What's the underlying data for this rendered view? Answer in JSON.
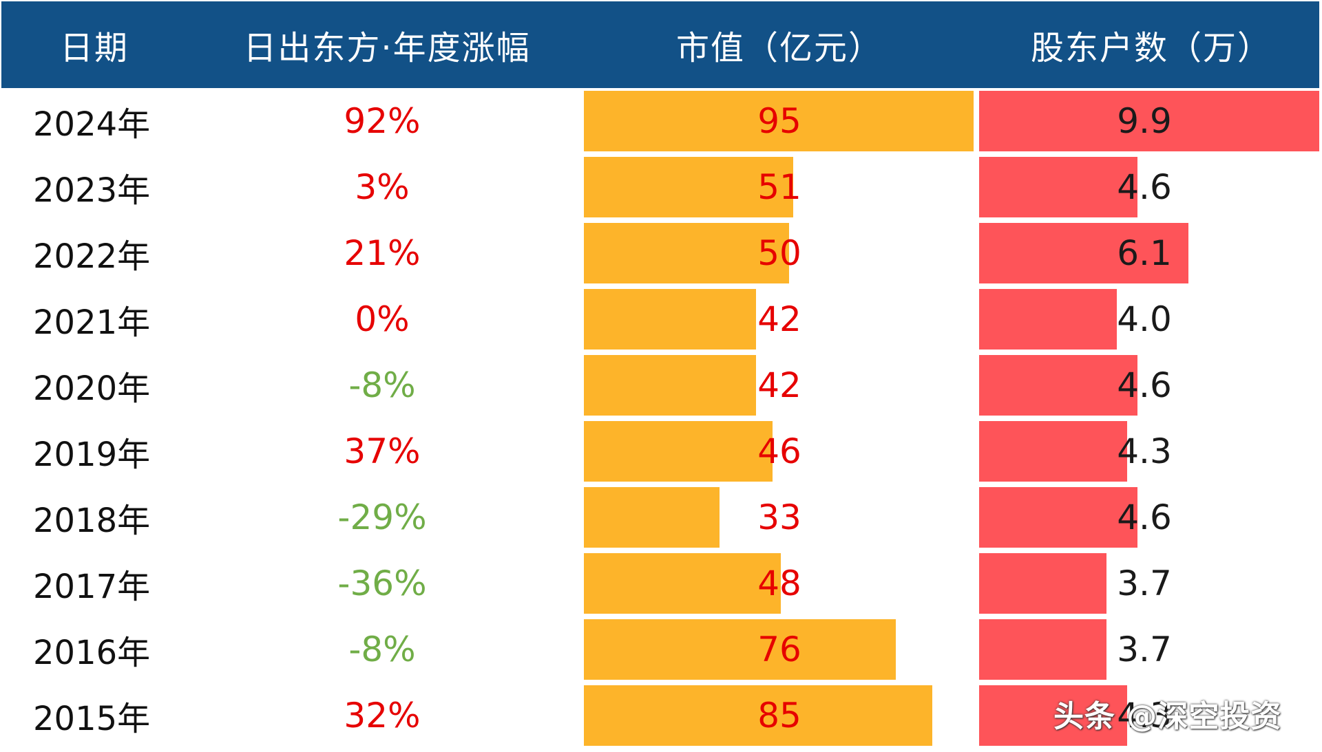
{
  "header": {
    "date": "日期",
    "change": "日出东方·年度涨幅",
    "market_value": "市值（亿元）",
    "shareholders": "股东户数（万）"
  },
  "colors": {
    "header_bg": "#125187",
    "market_value_bar": "#FDB42A",
    "shareholders_bar": "#FE5459",
    "positive": "#E60000",
    "negative": "#70AD47"
  },
  "chart_data": {
    "type": "table",
    "columns": [
      "日期",
      "日出东方·年度涨幅",
      "市值（亿元）",
      "股东户数（万）"
    ],
    "rows": [
      {
        "date": "2024年",
        "change": "92%",
        "change_sign": "up",
        "market_value": 95,
        "market_value_label": "95",
        "shareholders": 9.9,
        "shareholders_label": "9.9"
      },
      {
        "date": "2023年",
        "change": "3%",
        "change_sign": "up",
        "market_value": 51,
        "market_value_label": "51",
        "shareholders": 4.6,
        "shareholders_label": "4.6"
      },
      {
        "date": "2022年",
        "change": "21%",
        "change_sign": "up",
        "market_value": 50,
        "market_value_label": "50",
        "shareholders": 6.1,
        "shareholders_label": "6.1"
      },
      {
        "date": "2021年",
        "change": "0%",
        "change_sign": "up",
        "market_value": 42,
        "market_value_label": "42",
        "shareholders": 4.0,
        "shareholders_label": "4.0"
      },
      {
        "date": "2020年",
        "change": "-8%",
        "change_sign": "down",
        "market_value": 42,
        "market_value_label": "42",
        "shareholders": 4.6,
        "shareholders_label": "4.6"
      },
      {
        "date": "2019年",
        "change": "37%",
        "change_sign": "up",
        "market_value": 46,
        "market_value_label": "46",
        "shareholders": 4.3,
        "shareholders_label": "4.3"
      },
      {
        "date": "2018年",
        "change": "-29%",
        "change_sign": "down",
        "market_value": 33,
        "market_value_label": "33",
        "shareholders": 4.6,
        "shareholders_label": "4.6"
      },
      {
        "date": "2017年",
        "change": "-36%",
        "change_sign": "down",
        "market_value": 48,
        "market_value_label": "48",
        "shareholders": 3.7,
        "shareholders_label": "3.7"
      },
      {
        "date": "2016年",
        "change": "-8%",
        "change_sign": "down",
        "market_value": 76,
        "market_value_label": "76",
        "shareholders": 3.7,
        "shareholders_label": "3.7"
      },
      {
        "date": "2015年",
        "change": "32%",
        "change_sign": "up",
        "market_value": 85,
        "market_value_label": "85",
        "shareholders": 4.3,
        "shareholders_label": "4.3"
      }
    ],
    "market_value_max": 95,
    "shareholders_max": 9.9
  },
  "watermark": "头条 @深空投资"
}
